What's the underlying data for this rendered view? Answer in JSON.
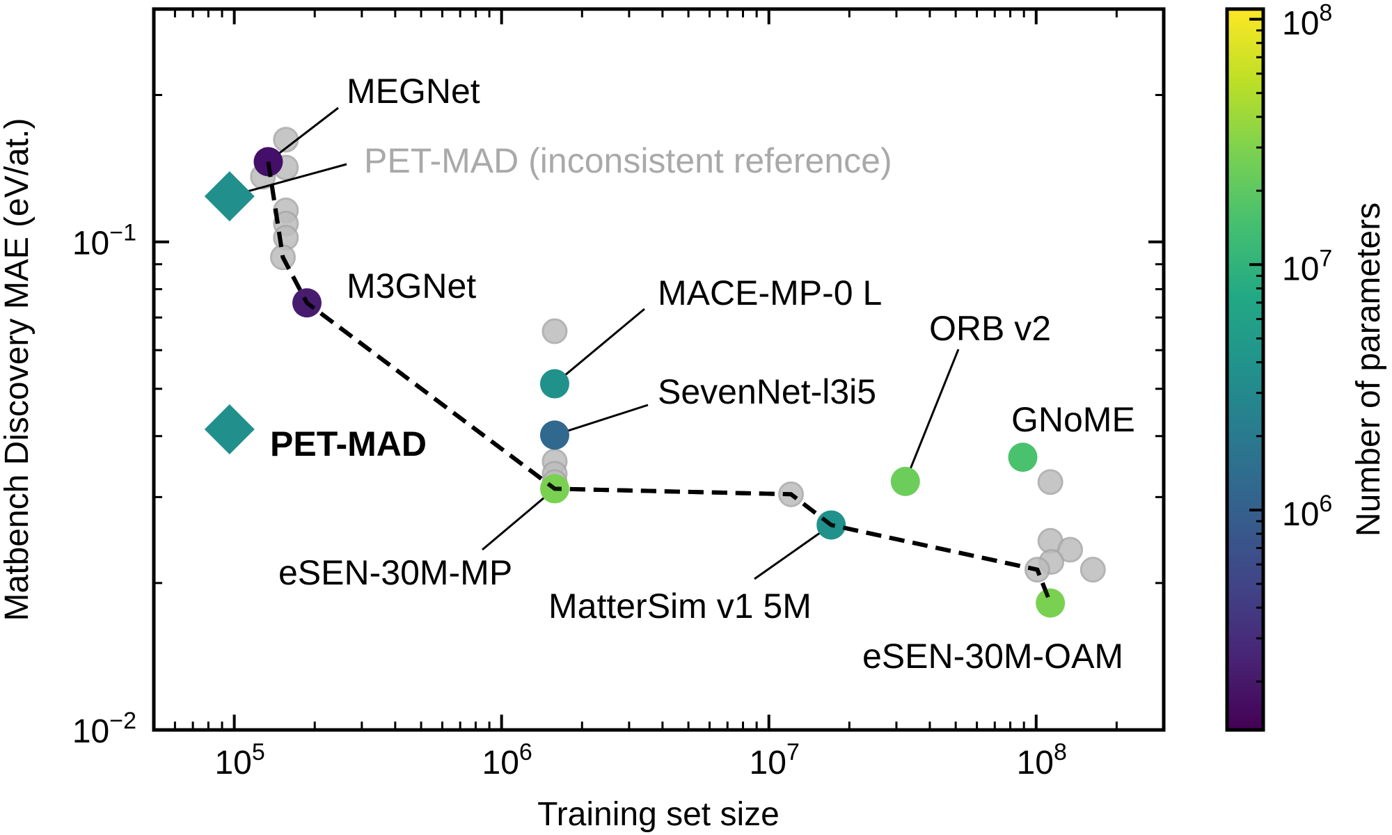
{
  "chart_data": {
    "type": "scatter",
    "title": "",
    "xlabel": "Training set size",
    "ylabel": "Matbench Discovery MAE (eV/at.)",
    "xscale": "log",
    "yscale": "log",
    "xlim": [
      50000,
      300000000
    ],
    "ylim": [
      0.01,
      0.3
    ],
    "x_ticks": [
      {
        "value": 100000,
        "base": "10",
        "exp": "5"
      },
      {
        "value": 1000000,
        "base": "10",
        "exp": "6"
      },
      {
        "value": 10000000,
        "base": "10",
        "exp": "7"
      },
      {
        "value": 100000000,
        "base": "10",
        "exp": "8"
      }
    ],
    "y_ticks": [
      {
        "value": 0.01,
        "base": "10",
        "exp": "−2"
      },
      {
        "value": 0.1,
        "base": "10",
        "exp": "−1"
      }
    ],
    "grid": false,
    "colorbar": {
      "label": "Number of parameters",
      "scale": "log",
      "colormap": "viridis",
      "range": [
        127000,
        110000000
      ],
      "ticks": [
        {
          "value": 1000000,
          "base": "10",
          "exp": "6"
        },
        {
          "value": 10000000,
          "base": "10",
          "exp": "7"
        },
        {
          "value": 100000000,
          "base": "10",
          "exp": "8"
        }
      ]
    },
    "highlighted_models": [
      {
        "name": "MEGNet",
        "x": 134000,
        "y": 0.146,
        "params": 170000,
        "color": "#440f68",
        "marker": "circle"
      },
      {
        "name": "M3GNet",
        "x": 187000,
        "y": 0.075,
        "params": 230000,
        "color": "#471c6e",
        "marker": "circle"
      },
      {
        "name": "MACE-MP-0 L",
        "x": 1580000,
        "y": 0.0512,
        "params": 4700000,
        "color": "#21918c",
        "marker": "circle"
      },
      {
        "name": "SevenNet-l3i5",
        "x": 1580000,
        "y": 0.0402,
        "params": 1200000,
        "color": "#31688e",
        "marker": "circle"
      },
      {
        "name": "eSEN-30M-MP",
        "x": 1580000,
        "y": 0.0312,
        "params": 30000000,
        "color": "#7ad151",
        "marker": "circle"
      },
      {
        "name": "MatterSim v1 5M",
        "x": 17100000,
        "y": 0.0263,
        "params": 4500000,
        "color": "#21918c",
        "marker": "circle"
      },
      {
        "name": "ORB v2",
        "x": 32400000,
        "y": 0.0323,
        "params": 25000000,
        "color": "#6ccd5a",
        "marker": "circle"
      },
      {
        "name": "GNoME",
        "x": 89100000,
        "y": 0.0362,
        "params": 16000000,
        "color": "#4ac16d",
        "marker": "circle"
      },
      {
        "name": "eSEN-30M-OAM",
        "x": 113000000,
        "y": 0.0182,
        "params": 30000000,
        "color": "#7ad151",
        "marker": "circle"
      },
      {
        "name": "PET-MAD",
        "x": 96000,
        "y": 0.0413,
        "params": 4500000,
        "color": "#21908d",
        "marker": "diamond",
        "bold": true
      },
      {
        "name": "PET-MAD (inconsistent reference)",
        "x": 96000,
        "y": 0.124,
        "params": 4500000,
        "color": "#21908d",
        "marker": "diamond",
        "label_color": "#a9a9a9"
      }
    ],
    "other_models": [
      {
        "x": 156000,
        "y": 0.162
      },
      {
        "x": 156000,
        "y": 0.142
      },
      {
        "x": 128000,
        "y": 0.136
      },
      {
        "x": 156000,
        "y": 0.116
      },
      {
        "x": 156000,
        "y": 0.109
      },
      {
        "x": 156000,
        "y": 0.102
      },
      {
        "x": 152000,
        "y": 0.093
      },
      {
        "x": 1580000,
        "y": 0.0656
      },
      {
        "x": 1580000,
        "y": 0.0355
      },
      {
        "x": 1580000,
        "y": 0.0335
      },
      {
        "x": 1580000,
        "y": 0.0322
      },
      {
        "x": 12100000,
        "y": 0.0304
      },
      {
        "x": 113000000,
        "y": 0.0322
      },
      {
        "x": 113000000,
        "y": 0.0244
      },
      {
        "x": 134000000,
        "y": 0.0234
      },
      {
        "x": 114000000,
        "y": 0.0221
      },
      {
        "x": 101000000,
        "y": 0.0213
      },
      {
        "x": 163000000,
        "y": 0.0213
      }
    ],
    "pareto_front": [
      {
        "x": 134000,
        "y": 0.146
      },
      {
        "x": 152000,
        "y": 0.093
      },
      {
        "x": 187000,
        "y": 0.075
      },
      {
        "x": 1580000,
        "y": 0.0312
      },
      {
        "x": 12100000,
        "y": 0.0304
      },
      {
        "x": 17100000,
        "y": 0.0263
      },
      {
        "x": 101000000,
        "y": 0.0213
      },
      {
        "x": 113000000,
        "y": 0.0182
      }
    ],
    "other_models_color": "#bdbdbd"
  }
}
